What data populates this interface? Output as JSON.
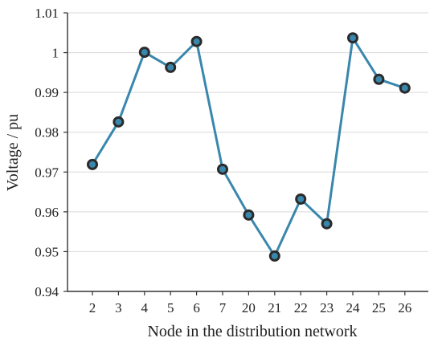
{
  "chart_data": {
    "type": "line",
    "title": "",
    "xlabel": "Node in the distribution network",
    "ylabel": "Voltage / pu",
    "categories": [
      "2",
      "3",
      "4",
      "5",
      "6",
      "7",
      "20",
      "21",
      "22",
      "23",
      "24",
      "25",
      "26"
    ],
    "series": [
      {
        "values": [
          0.9719,
          0.9826,
          1.0001,
          0.9963,
          1.0028,
          0.9707,
          0.9592,
          0.9489,
          0.9632,
          0.957,
          1.0037,
          0.9933,
          0.9911
        ]
      }
    ],
    "ylim": [
      0.94,
      1.01
    ],
    "yticks": [
      0.94,
      0.95,
      0.96,
      0.97,
      0.98,
      0.99,
      1.0,
      1.01
    ],
    "ytick_labels": [
      "0.94",
      "0.95",
      "0.96",
      "0.97",
      "0.98",
      "0.99",
      "1",
      "1.01"
    ],
    "grid": "horizontal",
    "legend": "none",
    "colors": {
      "line": "#3a87ad",
      "marker_fill": "#3a87ad",
      "marker_edge": "#2b2b2b",
      "grid": "#d9d9d9",
      "axis": "#333333"
    }
  }
}
